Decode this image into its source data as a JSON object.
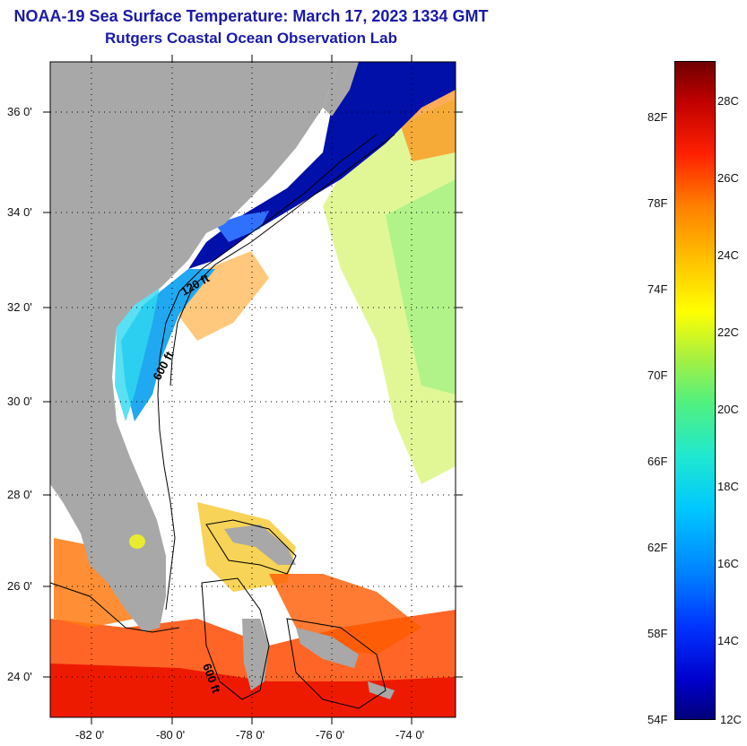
{
  "title": "NOAA-19 Sea Surface Temperature:  March 17, 2023 1334 GMT",
  "subtitle": "Rutgers Coastal Ocean Observation Lab",
  "lat_labels": [
    "36 0'",
    "34 0'",
    "32 0'",
    "30 0'",
    "28 0'",
    "26 0'",
    "24 0'"
  ],
  "lon_labels": [
    "-82 0'",
    "-80 0'",
    "-78 0'",
    "-76 0'",
    "-74 0'"
  ],
  "contours": [
    "120 ft",
    "600 ft",
    "600 ft"
  ],
  "colorbar": {
    "fahrenheit": [
      "82F",
      "78F",
      "74F",
      "70F",
      "66F",
      "62F",
      "58F",
      "54F"
    ],
    "celsius": [
      "28C",
      "26C",
      "24C",
      "22C",
      "20C",
      "18C",
      "16C",
      "14C",
      "12C"
    ]
  },
  "colors": {
    "title": "#1a1aa8",
    "land": "#a8a8a8",
    "cold": "#0000cc",
    "warm": "#ff2000"
  }
}
